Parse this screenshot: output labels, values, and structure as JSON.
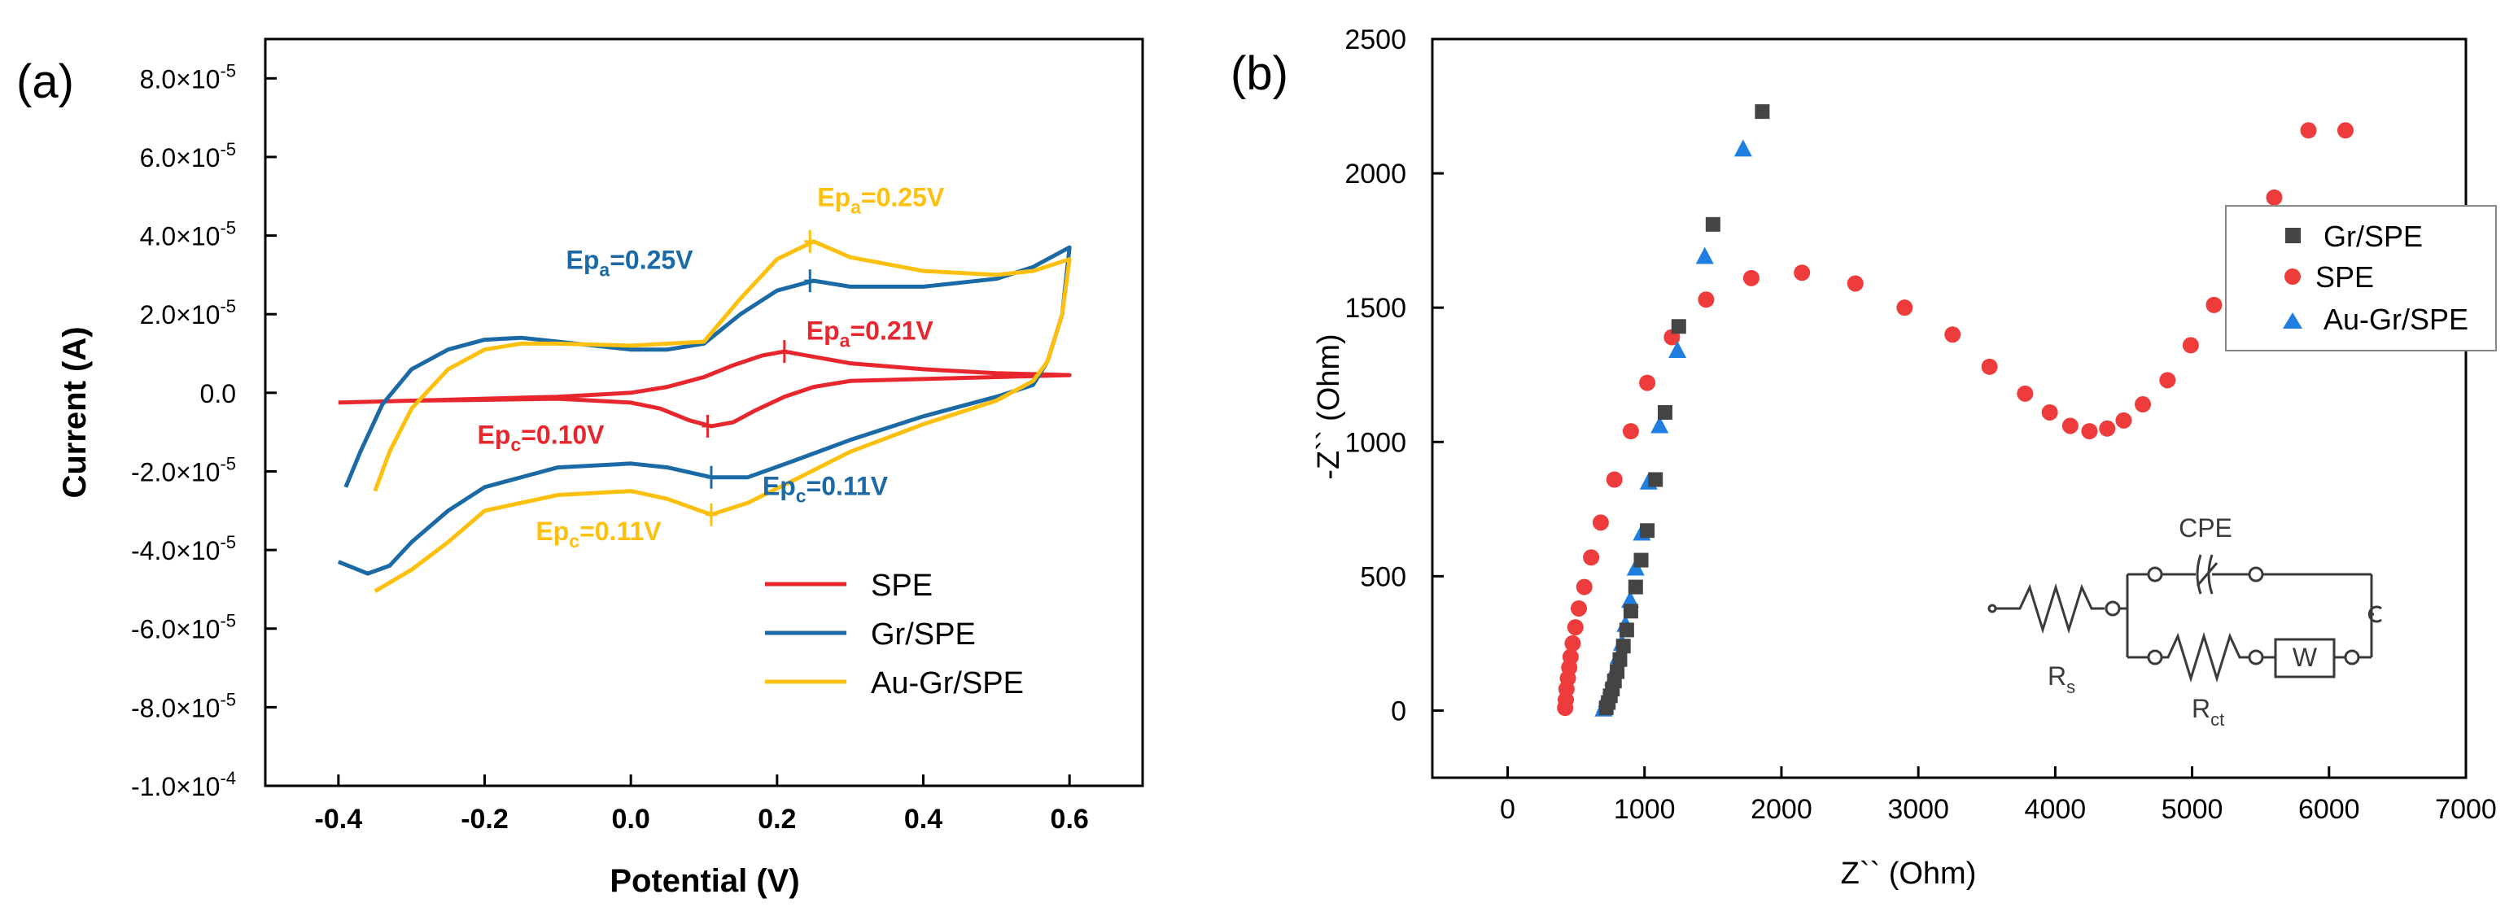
{
  "colors": {
    "spe": "#e8262d",
    "gr": "#1b6aa5",
    "au": "#fdc00e",
    "gr_marker": "#444444",
    "spe_marker": "#ee3b3b",
    "au_marker": "#1f7fe0",
    "axis": "#000000",
    "circuit": "#3a3a3a"
  },
  "chart_data": [
    {
      "type": "line",
      "panel_label": "(a)",
      "title": "",
      "xlabel": "Potential (V)",
      "ylabel": "Current (A)",
      "xlim": [
        -0.5,
        0.7
      ],
      "ylim": [
        -0.0001,
        9e-05
      ],
      "x_ticks": [
        -0.4,
        -0.2,
        0.0,
        0.2,
        0.4,
        0.6
      ],
      "x_tick_labels": [
        "-0.4",
        "-0.2",
        "0.0",
        "0.2",
        "0.4",
        "0.6"
      ],
      "y_ticks": [
        {
          "value": 8e-05,
          "mant": "8.0×10",
          "exp": "-5"
        },
        {
          "value": 6e-05,
          "mant": "6.0×10",
          "exp": "-5"
        },
        {
          "value": 4e-05,
          "mant": "4.0×10",
          "exp": "-5"
        },
        {
          "value": 2e-05,
          "mant": "2.0×10",
          "exp": "-5"
        },
        {
          "value": 0.0,
          "mant": "0.0",
          "exp": ""
        },
        {
          "value": -2e-05,
          "mant": "-2.0×10",
          "exp": "-5"
        },
        {
          "value": -4e-05,
          "mant": "-4.0×10",
          "exp": "-5"
        },
        {
          "value": -6e-05,
          "mant": "-6.0×10",
          "exp": "-5"
        },
        {
          "value": -8e-05,
          "mant": "-8.0×10",
          "exp": "-5"
        },
        {
          "value": -0.0001,
          "mant": "-1.0×10",
          "exp": "-4"
        }
      ],
      "legend_position": "bottom-right",
      "series": [
        {
          "name": "SPE",
          "color_key": "spe",
          "x": [
            -0.4,
            -0.3,
            -0.2,
            -0.1,
            0.0,
            0.05,
            0.1,
            0.14,
            0.18,
            0.21,
            0.24,
            0.3,
            0.4,
            0.5,
            0.6,
            0.5,
            0.4,
            0.3,
            0.25,
            0.21,
            0.17,
            0.14,
            0.11,
            0.08,
            0.04,
            0.0,
            -0.1,
            -0.2,
            -0.3,
            -0.4
          ],
          "y": [
            -2.5e-06,
            -2e-06,
            -1.5e-06,
            -1e-06,
            0.0,
            1.5e-06,
            4e-06,
            7e-06,
            9.5e-06,
            1.05e-05,
            9.5e-06,
            7.5e-06,
            6e-06,
            5e-06,
            4.5e-06,
            4e-06,
            3.5e-06,
            3e-06,
            1.5e-06,
            -1e-06,
            -4.5e-06,
            -7.5e-06,
            -8.5e-06,
            -7e-06,
            -4e-06,
            -2.5e-06,
            -1.5e-06,
            -1.8e-06,
            -2e-06,
            -2.5e-06
          ]
        },
        {
          "name": "Gr/SPE",
          "color_key": "gr",
          "x": [
            -0.39,
            -0.37,
            -0.34,
            -0.3,
            -0.25,
            -0.2,
            -0.15,
            -0.1,
            0.0,
            0.05,
            0.1,
            0.15,
            0.2,
            0.25,
            0.3,
            0.4,
            0.5,
            0.55,
            0.6,
            0.59,
            0.57,
            0.55,
            0.5,
            0.4,
            0.3,
            0.22,
            0.16,
            0.11,
            0.05,
            0.0,
            -0.1,
            -0.2,
            -0.25,
            -0.3,
            -0.33,
            -0.36,
            -0.4
          ],
          "y": [
            -2.4e-05,
            -1.5e-05,
            -3e-06,
            6e-06,
            1.1e-05,
            1.35e-05,
            1.4e-05,
            1.3e-05,
            1.1e-05,
            1.1e-05,
            1.25e-05,
            2e-05,
            2.6e-05,
            2.85e-05,
            2.7e-05,
            2.7e-05,
            2.9e-05,
            3.2e-05,
            3.7e-05,
            2e-05,
            8e-06,
            2e-06,
            -1e-06,
            -6e-06,
            -1.2e-05,
            -1.75e-05,
            -2.15e-05,
            -2.15e-05,
            -1.9e-05,
            -1.8e-05,
            -1.9e-05,
            -2.4e-05,
            -3e-05,
            -3.8e-05,
            -4.4e-05,
            -4.6e-05,
            -4.3e-05
          ]
        },
        {
          "name": "Au-Gr/SPE",
          "color_key": "au",
          "x": [
            -0.35,
            -0.33,
            -0.3,
            -0.25,
            -0.2,
            -0.15,
            -0.1,
            0.0,
            0.1,
            0.15,
            0.2,
            0.25,
            0.3,
            0.4,
            0.5,
            0.55,
            0.6,
            0.59,
            0.57,
            0.55,
            0.5,
            0.4,
            0.3,
            0.22,
            0.16,
            0.11,
            0.05,
            0.0,
            -0.1,
            -0.2,
            -0.25,
            -0.3,
            -0.35
          ],
          "y": [
            -2.5e-05,
            -1.5e-05,
            -4e-06,
            6e-06,
            1.1e-05,
            1.25e-05,
            1.25e-05,
            1.2e-05,
            1.3e-05,
            2.4e-05,
            3.4e-05,
            3.85e-05,
            3.45e-05,
            3.1e-05,
            3e-05,
            3.1e-05,
            3.4e-05,
            2e-05,
            8e-06,
            3e-06,
            -2e-06,
            -8e-06,
            -1.5e-05,
            -2.25e-05,
            -2.8e-05,
            -3.1e-05,
            -2.7e-05,
            -2.5e-05,
            -2.6e-05,
            -3e-05,
            -3.8e-05,
            -4.5e-05,
            -5.05e-05
          ]
        }
      ],
      "annotations": [
        {
          "prefix": "Ep",
          "sub": "a",
          "suffix": "=0.25V",
          "color_key": "au",
          "x": 0.245,
          "y": 3.85e-05,
          "text_x": 0.255,
          "text_y": 4.75e-05,
          "anchor": "start"
        },
        {
          "prefix": "Ep",
          "sub": "a",
          "suffix": "=0.25V",
          "color_key": "gr",
          "x": 0.245,
          "y": 2.85e-05,
          "text_x": 0.085,
          "text_y": 3.15e-05,
          "anchor": "end"
        },
        {
          "prefix": "Ep",
          "sub": "a",
          "suffix": "=0.21V",
          "color_key": "spe",
          "x": 0.21,
          "y": 1.05e-05,
          "text_x": 0.24,
          "text_y": 1.35e-05,
          "anchor": "start"
        },
        {
          "prefix": "Ep",
          "sub": "c",
          "suffix": "=0.10V",
          "color_key": "spe",
          "x": 0.105,
          "y": -8.5e-06,
          "text_x": -0.21,
          "text_y": -1.3e-05,
          "anchor": "start"
        },
        {
          "prefix": "Ep",
          "sub": "c",
          "suffix": "=0.11V",
          "color_key": "gr",
          "x": 0.11,
          "y": -2.15e-05,
          "text_x": 0.18,
          "text_y": -2.6e-05,
          "anchor": "start"
        },
        {
          "prefix": "Ep",
          "sub": "c",
          "suffix": "=0.11V",
          "color_key": "au",
          "x": 0.11,
          "y": -3.1e-05,
          "text_x": -0.13,
          "text_y": -3.75e-05,
          "anchor": "start"
        }
      ]
    },
    {
      "type": "scatter",
      "panel_label": "(b)",
      "title": "",
      "xlabel": "Z`` (Ohm)",
      "ylabel": "-Z`` (Ohm)",
      "xlim": [
        -550,
        7000
      ],
      "ylim": [
        -250,
        2500
      ],
      "x_ticks": [
        0,
        1000,
        2000,
        3000,
        4000,
        5000,
        6000,
        7000
      ],
      "x_tick_labels": [
        "0",
        "1000",
        "2000",
        "3000",
        "4000",
        "5000",
        "6000",
        "7000"
      ],
      "y_ticks": [
        0,
        500,
        1000,
        1500,
        2000,
        2500
      ],
      "y_tick_labels": [
        "0",
        "500",
        "1000",
        "1500",
        "2000",
        "2500"
      ],
      "legend_position": "top-right",
      "series": [
        {
          "name": "Gr/SPE",
          "marker": "square",
          "color_key": "gr_marker",
          "x": [
            720,
            735,
            750,
            765,
            780,
            800,
            820,
            845,
            870,
            900,
            935,
            975,
            1020,
            1080,
            1150,
            1250,
            1500,
            1860
          ],
          "y": [
            10,
            30,
            55,
            80,
            110,
            145,
            190,
            240,
            300,
            370,
            460,
            560,
            670,
            860,
            1110,
            1430,
            1810,
            2230
          ]
        },
        {
          "name": "SPE",
          "marker": "circle",
          "color_key": "spe_marker",
          "x": [
            420,
            425,
            430,
            440,
            450,
            460,
            475,
            495,
            520,
            560,
            610,
            680,
            780,
            900,
            1020,
            1200,
            1450,
            1780,
            2150,
            2540,
            2900,
            3250,
            3520,
            3780,
            3960,
            4110,
            4250,
            4380,
            4500,
            4640,
            4820,
            4990,
            5160,
            5380,
            5600,
            5850,
            6120
          ],
          "y": [
            10,
            40,
            80,
            120,
            160,
            200,
            250,
            310,
            380,
            460,
            570,
            700,
            860,
            1040,
            1220,
            1390,
            1530,
            1610,
            1630,
            1590,
            1500,
            1400,
            1280,
            1180,
            1110,
            1060,
            1040,
            1050,
            1080,
            1140,
            1230,
            1360,
            1510,
            1690,
            1910,
            2160,
            2160
          ]
        },
        {
          "name": "Au-Gr/SPE",
          "marker": "triangle",
          "color_key": "au_marker",
          "x": [
            700,
            712,
            725,
            740,
            755,
            770,
            790,
            810,
            835,
            860,
            895,
            935,
            980,
            1030,
            1110,
            1240,
            1440,
            1720
          ],
          "y": [
            5,
            20,
            40,
            65,
            90,
            120,
            155,
            200,
            250,
            320,
            410,
            530,
            660,
            850,
            1060,
            1340,
            1690,
            2090
          ]
        }
      ],
      "circuit": {
        "cpe_label": "CPE",
        "rs_label": "R",
        "rs_sub": "s",
        "rct_label": "R",
        "rct_sub": "ct",
        "w_label": "W"
      }
    }
  ]
}
